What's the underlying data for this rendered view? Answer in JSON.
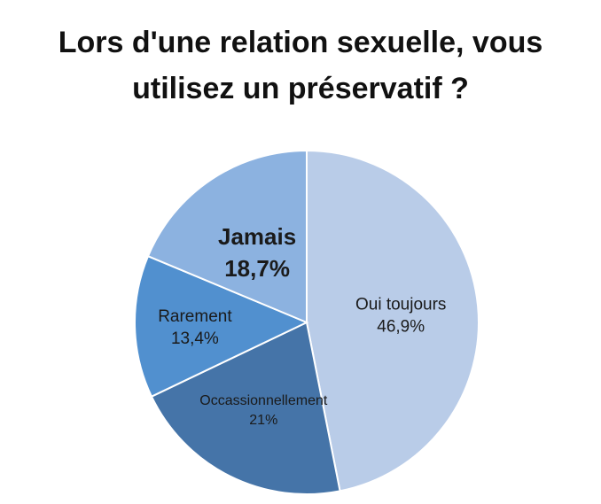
{
  "title_lines": [
    "Lors d'une relation sexuelle, vous",
    "utilisez un préservatif ?"
  ],
  "chart_data": {
    "type": "pie",
    "title": "Lors d'une relation sexuelle, vous utilisez un préservatif ?",
    "slices": [
      {
        "label": "Oui toujours",
        "value": 46.9,
        "display": "46,9%",
        "color": "#b9cce8"
      },
      {
        "label": "Occassionnellement",
        "value": 21,
        "display": "21%",
        "color": "#4574a8"
      },
      {
        "label": "Rarement",
        "value": 13.4,
        "display": "13,4%",
        "color": "#5190cf"
      },
      {
        "label": "Jamais",
        "value": 18.7,
        "display": "18,7%",
        "color": "#8cb2e0"
      }
    ],
    "start_angle": "12 o'clock",
    "direction": "clockwise",
    "legend": "none",
    "slice_separator_color": "#ffffff"
  }
}
